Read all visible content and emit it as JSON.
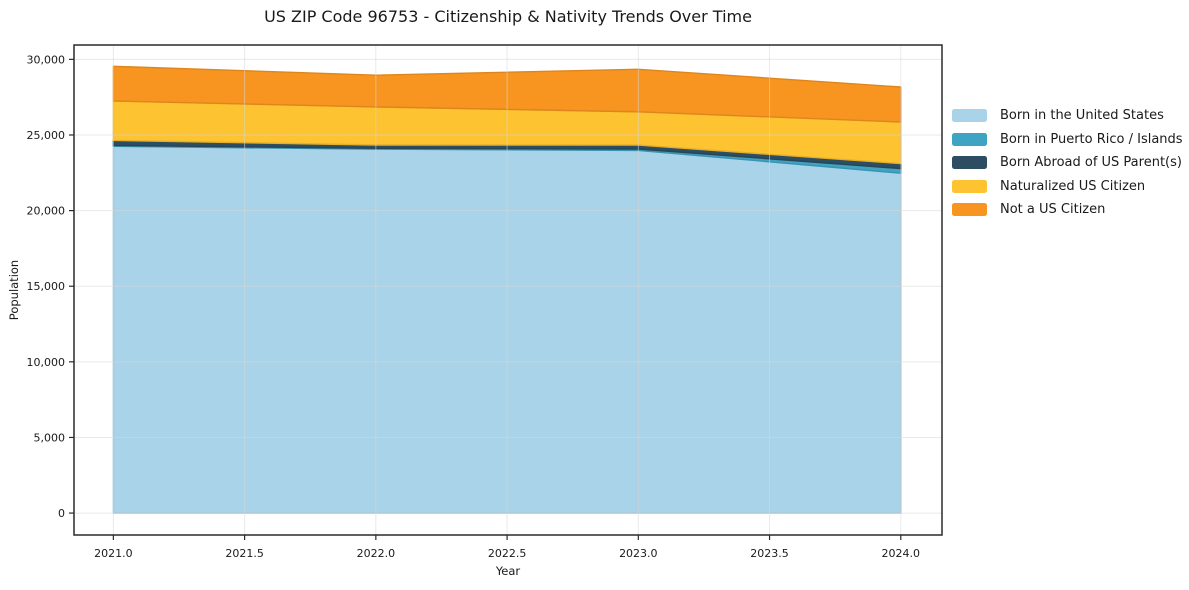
{
  "chart": {
    "title": "US ZIP Code 96753 - Citizenship & Nativity Trends Over Time",
    "xlabel": "Year",
    "ylabel": "Population"
  },
  "chart_data": {
    "type": "area",
    "stacked": true,
    "title": "US ZIP Code 96753 - Citizenship & Nativity Trends Over Time",
    "xlabel": "Year",
    "ylabel": "Population",
    "x": [
      2021,
      2022,
      2023,
      2024
    ],
    "series": [
      {
        "name": "Born in the United States",
        "color": "#A8D3E8",
        "values": [
          24250,
          24060,
          23980,
          22470
        ]
      },
      {
        "name": "Born in Puerto Rico / Islands",
        "color": "#3FA4C3",
        "values": [
          60,
          60,
          90,
          310
        ]
      },
      {
        "name": "Born Abroad of US Parent(s)",
        "color": "#2C4D62",
        "values": [
          330,
          220,
          260,
          330
        ]
      },
      {
        "name": "Naturalized US Citizen",
        "color": "#FDC330",
        "values": [
          2610,
          2520,
          2200,
          2750
        ]
      },
      {
        "name": "Not a US Citizen",
        "color": "#F79520",
        "values": [
          2290,
          2090,
          2810,
          2310
        ]
      }
    ],
    "stacked_totals": [
      29540,
      28950,
      29340,
      28170
    ],
    "xlim": [
      2020.85,
      2024.157
    ],
    "ylim": [
      -1450,
      30950
    ],
    "xticks": {
      "values": [
        2021.0,
        2021.5,
        2022.0,
        2022.5,
        2023.0,
        2023.5,
        2024.0
      ],
      "labels": [
        "2021.0",
        "2021.5",
        "2022.0",
        "2022.5",
        "2023.0",
        "2023.5",
        "2024.0"
      ]
    },
    "yticks": {
      "values": [
        0,
        5000,
        10000,
        15000,
        20000,
        25000,
        30000
      ],
      "labels": [
        "0",
        "5,000",
        "10,000",
        "15,000",
        "20,000",
        "25,000",
        "30,000"
      ]
    },
    "grid": true,
    "grid_color": "#D8D8D8",
    "frame_color": "#2a2a2a",
    "legend_position": "right-outside"
  }
}
